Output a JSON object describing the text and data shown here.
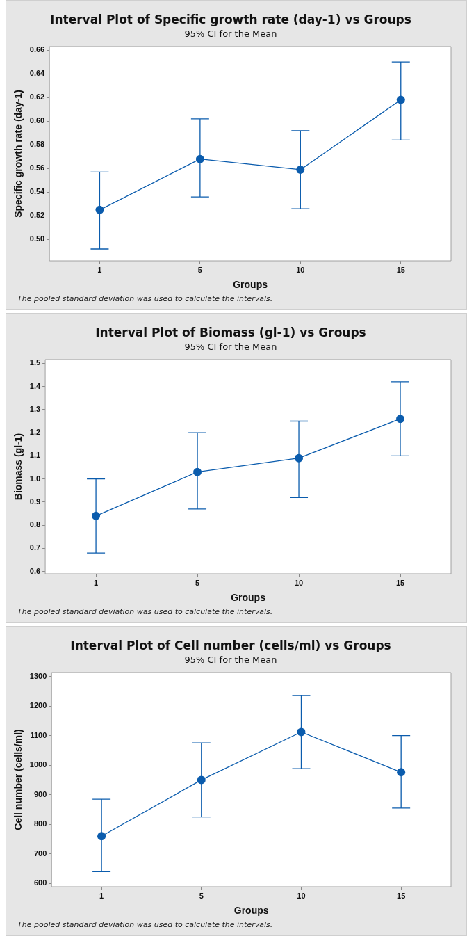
{
  "chart_data": [
    {
      "type": "line",
      "title": "Interval Plot of Specific growth rate (day-1) vs Groups",
      "subtitle": "95% CI for the Mean",
      "xlabel": "Groups",
      "ylabel": "Specific growth rate (day-1)",
      "categories": [
        "1",
        "5",
        "10",
        "15"
      ],
      "series": [
        {
          "color": "#0b5cad",
          "values": [
            0.525,
            0.568,
            0.559,
            0.618
          ],
          "errors": [
            [
              0.492,
              0.557
            ],
            [
              0.536,
              0.602
            ],
            [
              0.526,
              0.592
            ],
            [
              0.584,
              0.65
            ]
          ]
        }
      ],
      "ylim": [
        0.482,
        0.663
      ],
      "yticks": [
        {
          "value": 0.5,
          "label": "0.50"
        },
        {
          "value": 0.52,
          "label": "0.52"
        },
        {
          "value": 0.54,
          "label": "0.54"
        },
        {
          "value": 0.56,
          "label": "0.56"
        },
        {
          "value": 0.58,
          "label": "0.58"
        },
        {
          "value": 0.6,
          "label": "0.60"
        },
        {
          "value": 0.62,
          "label": "0.62"
        },
        {
          "value": 0.64,
          "label": "0.64"
        },
        {
          "value": 0.66,
          "label": "0.66"
        }
      ],
      "grid": false,
      "legend": false,
      "marker": "circle",
      "line_style": "solid",
      "annotations": [
        "The pooled standard deviation was used to calculate the intervals."
      ]
    },
    {
      "type": "line",
      "title": "Interval Plot of Biomass (gl-1) vs Groups",
      "subtitle": "95% CI for the Mean",
      "xlabel": "Groups",
      "ylabel": "Biomass (gl-1)",
      "categories": [
        "1",
        "5",
        "10",
        "15"
      ],
      "series": [
        {
          "color": "#0b5cad",
          "values": [
            0.84,
            1.03,
            1.09,
            1.26
          ],
          "errors": [
            [
              0.68,
              1.0
            ],
            [
              0.87,
              1.2
            ],
            [
              0.92,
              1.25
            ],
            [
              1.1,
              1.42
            ]
          ]
        }
      ],
      "ylim": [
        0.59,
        1.516
      ],
      "yticks": [
        {
          "value": 0.6,
          "label": "0.6"
        },
        {
          "value": 0.7,
          "label": "0.7"
        },
        {
          "value": 0.8,
          "label": "0.8"
        },
        {
          "value": 0.9,
          "label": "0.9"
        },
        {
          "value": 1.0,
          "label": "1.0"
        },
        {
          "value": 1.1,
          "label": "1.1"
        },
        {
          "value": 1.2,
          "label": "1.2"
        },
        {
          "value": 1.3,
          "label": "1.3"
        },
        {
          "value": 1.4,
          "label": "1.4"
        },
        {
          "value": 1.5,
          "label": "1.5"
        }
      ],
      "grid": false,
      "legend": false,
      "marker": "circle",
      "line_style": "solid",
      "annotations": [
        "The pooled standard deviation was used to calculate the intervals."
      ]
    },
    {
      "type": "line",
      "title": "Interval Plot of Cell number (cells/ml) vs Groups",
      "subtitle": "95% CI for the Mean",
      "xlabel": "Groups",
      "ylabel": "Cell number (cells/ml)",
      "categories": [
        "1",
        "5",
        "10",
        "15"
      ],
      "series": [
        {
          "color": "#0b5cad",
          "values": [
            760,
            950,
            1112,
            976
          ],
          "errors": [
            [
              640,
              885
            ],
            [
              825,
              1075
            ],
            [
              988,
              1235
            ],
            [
              855,
              1100
            ]
          ]
        }
      ],
      "ylim": [
        589,
        1313
      ],
      "yticks": [
        600,
        700,
        800,
        900,
        1000,
        1100,
        1200,
        1300
      ],
      "grid": false,
      "legend": false,
      "marker": "circle",
      "line_style": "solid",
      "annotations": [
        "The pooled standard deviation was used to calculate the intervals."
      ]
    }
  ]
}
